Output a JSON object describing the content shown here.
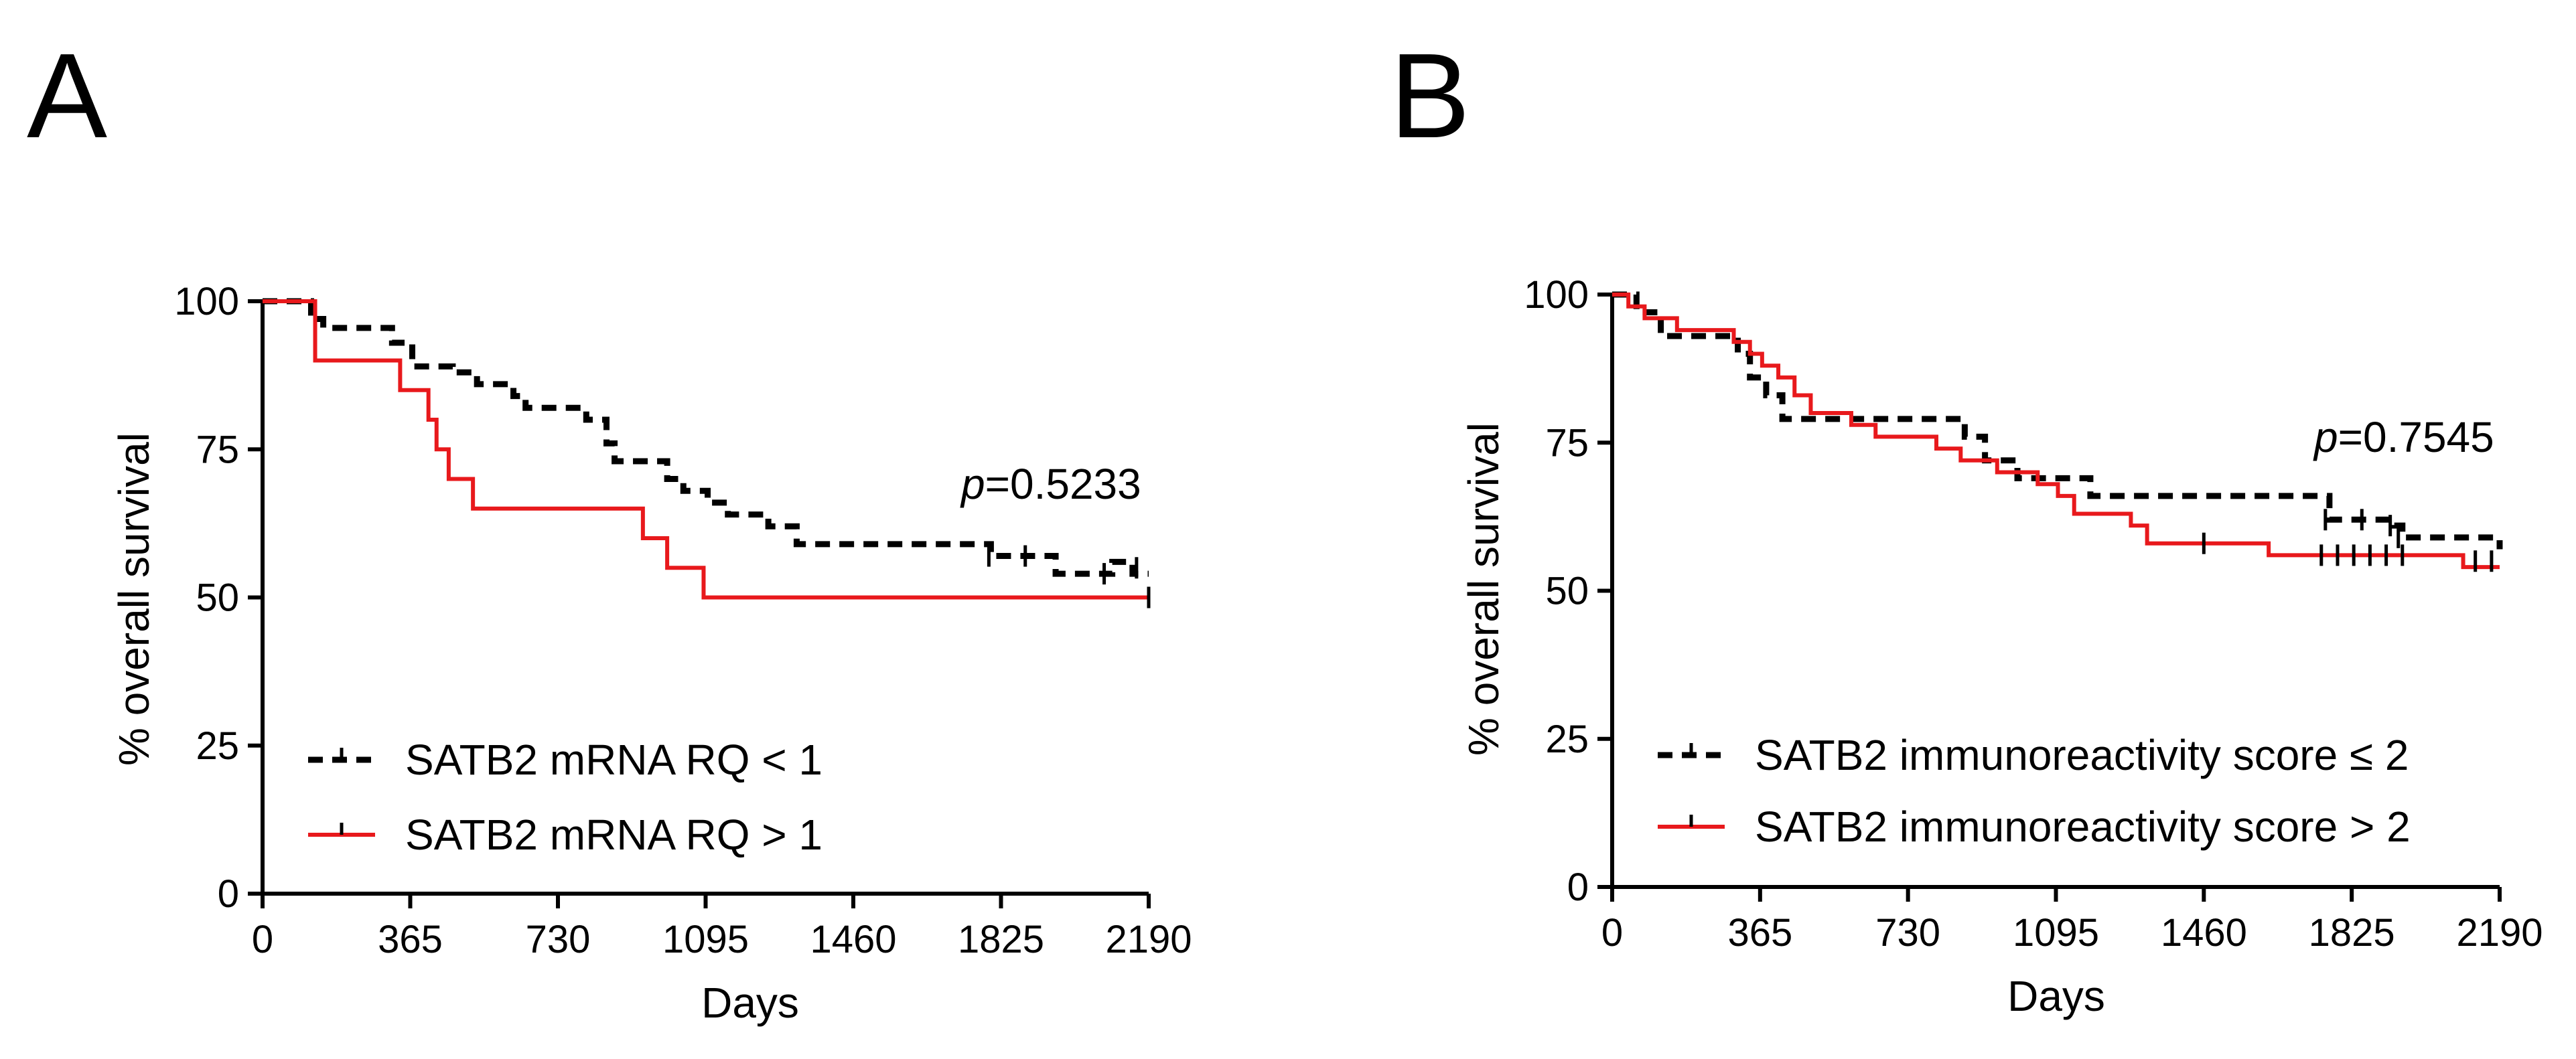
{
  "chart_data": [
    {
      "type": "line",
      "panel_label": "A",
      "xlabel": "Days",
      "ylabel": "% overall survival",
      "xlim": [
        0,
        2190
      ],
      "ylim": [
        0,
        100
      ],
      "xticks": [
        0,
        365,
        730,
        1095,
        1460,
        1825,
        2190
      ],
      "yticks": [
        0,
        25,
        50,
        75,
        100
      ],
      "annotation": {
        "prefix": "p",
        "text": "=0.5233"
      },
      "legend_position": "bottom-left",
      "series": [
        {
          "name": "SATB2 mRNA RQ < 1",
          "color": "#000000",
          "style": "dashed",
          "steps": [
            [
              0,
              100
            ],
            [
              120,
              97
            ],
            [
              150,
              95.5
            ],
            [
              320,
              93
            ],
            [
              370,
              89
            ],
            [
              470,
              88
            ],
            [
              530,
              86
            ],
            [
              620,
              84
            ],
            [
              650,
              82
            ],
            [
              800,
              80
            ],
            [
              850,
              76
            ],
            [
              870,
              73
            ],
            [
              1000,
              70
            ],
            [
              1040,
              68
            ],
            [
              1100,
              66
            ],
            [
              1150,
              64
            ],
            [
              1250,
              62
            ],
            [
              1320,
              59
            ],
            [
              1800,
              57
            ],
            [
              1960,
              54
            ],
            [
              2100,
              56
            ],
            [
              2150,
              54
            ],
            [
              2190,
              54
            ]
          ],
          "censors": [
            [
              1795,
              57
            ],
            [
              1885,
              57
            ],
            [
              2080,
              54
            ],
            [
              2160,
              55
            ]
          ]
        },
        {
          "name": "SATB2 mRNA RQ > 1",
          "color": "#e8191c",
          "style": "solid",
          "steps": [
            [
              0,
              100
            ],
            [
              130,
              90
            ],
            [
              340,
              85
            ],
            [
              410,
              80
            ],
            [
              430,
              75
            ],
            [
              460,
              70
            ],
            [
              520,
              65
            ],
            [
              940,
              60
            ],
            [
              1000,
              55
            ],
            [
              1090,
              50
            ],
            [
              2190,
              50
            ]
          ],
          "censors": [
            [
              2190,
              50
            ]
          ]
        }
      ]
    },
    {
      "type": "line",
      "panel_label": "B",
      "xlabel": "Days",
      "ylabel": "% overall survival",
      "xlim": [
        0,
        2190
      ],
      "ylim": [
        0,
        100
      ],
      "xticks": [
        0,
        365,
        730,
        1095,
        1460,
        1825,
        2190
      ],
      "yticks": [
        0,
        25,
        50,
        75,
        100
      ],
      "annotation": {
        "prefix": "p",
        "text": "=0.7545"
      },
      "legend_position": "bottom-left",
      "series": [
        {
          "name": "SATB2 immunoreactivity score ≤ 2",
          "color": "#000000",
          "style": "dashed",
          "steps": [
            [
              0,
              100
            ],
            [
              60,
              97
            ],
            [
              120,
              93
            ],
            [
              310,
              90
            ],
            [
              340,
              86
            ],
            [
              380,
              83
            ],
            [
              420,
              79
            ],
            [
              870,
              76
            ],
            [
              920,
              72
            ],
            [
              1000,
              69
            ],
            [
              1180,
              66
            ],
            [
              1770,
              62
            ],
            [
              1930,
              61
            ],
            [
              1950,
              59
            ],
            [
              2190,
              57
            ]
          ],
          "censors": [
            [
              1760,
              62
            ],
            [
              1850,
              62
            ],
            [
              1920,
              61
            ],
            [
              1940,
              59
            ]
          ]
        },
        {
          "name": "SATB2 immunoreactivity score > 2",
          "color": "#e8191c",
          "style": "solid",
          "steps": [
            [
              0,
              100
            ],
            [
              40,
              98
            ],
            [
              80,
              96
            ],
            [
              160,
              94
            ],
            [
              300,
              92
            ],
            [
              340,
              90
            ],
            [
              370,
              88
            ],
            [
              410,
              86
            ],
            [
              450,
              83
            ],
            [
              490,
              80
            ],
            [
              590,
              78
            ],
            [
              650,
              76
            ],
            [
              800,
              74
            ],
            [
              860,
              72
            ],
            [
              950,
              70
            ],
            [
              1050,
              68
            ],
            [
              1100,
              66
            ],
            [
              1140,
              63
            ],
            [
              1280,
              61
            ],
            [
              1320,
              58
            ],
            [
              1620,
              56
            ],
            [
              2100,
              54
            ],
            [
              2190,
              54
            ]
          ],
          "censors": [
            [
              1460,
              58
            ],
            [
              1750,
              56
            ],
            [
              1790,
              56
            ],
            [
              1830,
              56
            ],
            [
              1870,
              56
            ],
            [
              1910,
              56
            ],
            [
              1950,
              56
            ],
            [
              2130,
              55
            ],
            [
              2170,
              55
            ]
          ]
        }
      ]
    }
  ]
}
